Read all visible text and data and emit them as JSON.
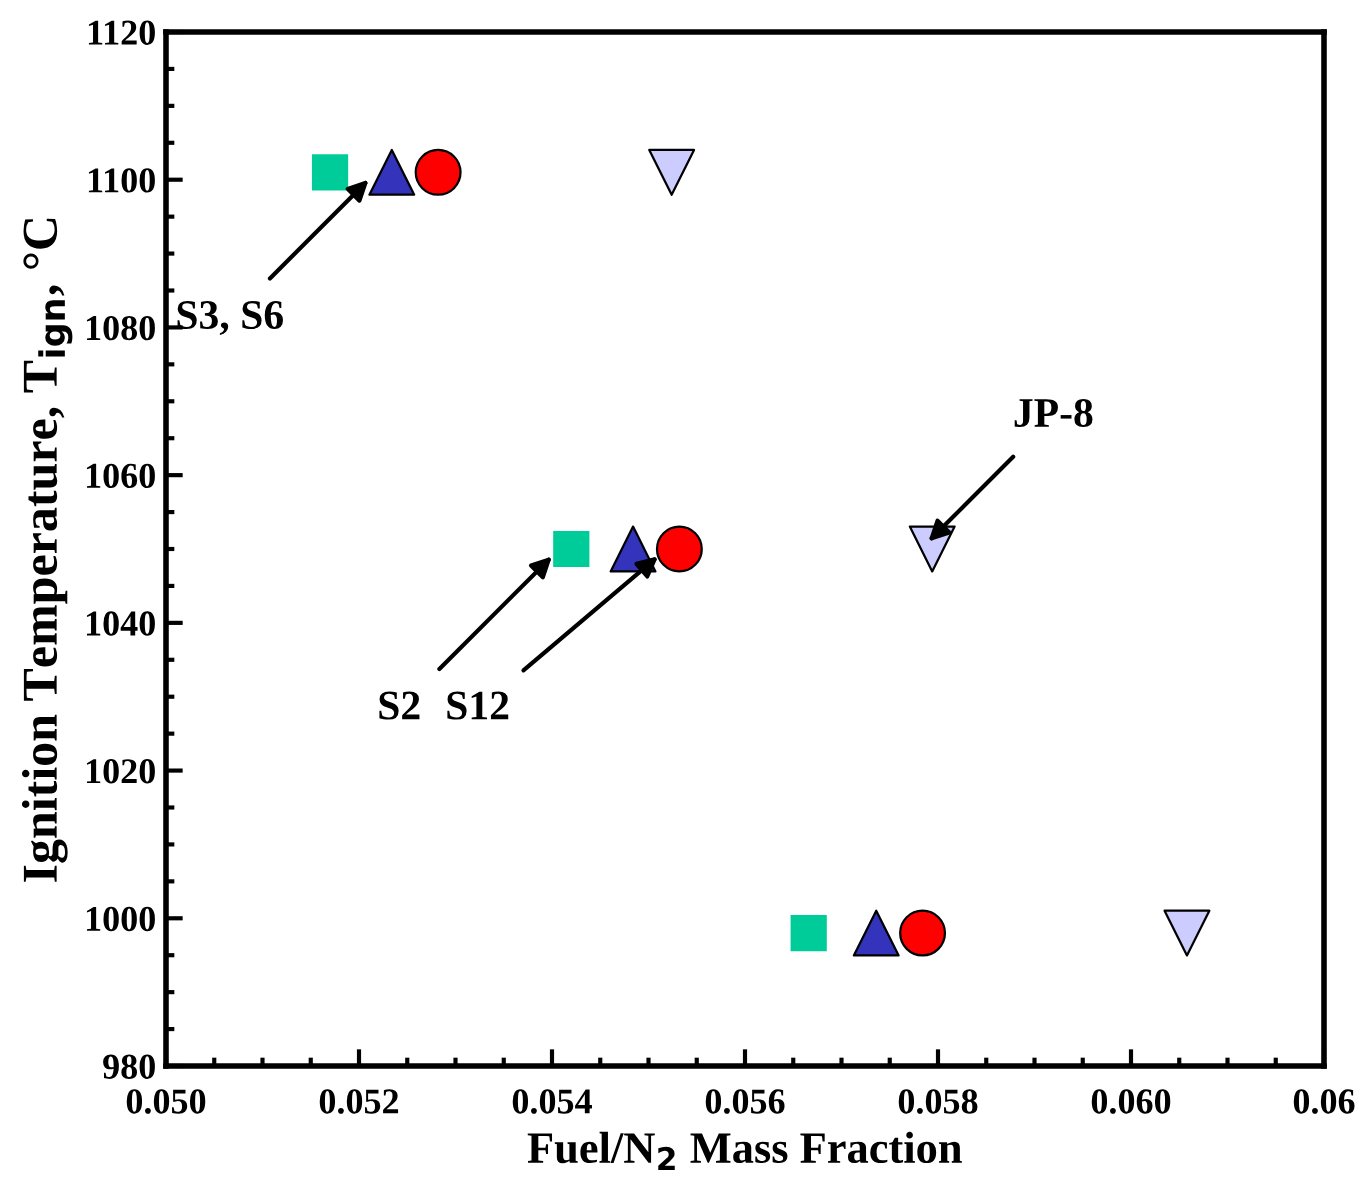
{
  "chart_data": {
    "type": "scatter",
    "xlabel": "Fuel/N$_{2}$ Mass Fraction",
    "ylabel": "Ignition Temperature, T$_{ign}$, °C",
    "xlim": [
      0.05,
      0.062
    ],
    "xticks": [
      {
        "value": 0.05,
        "label": "0.050"
      },
      {
        "value": 0.052,
        "label": "0.052"
      },
      {
        "value": 0.054,
        "label": "0.054"
      },
      {
        "value": 0.056,
        "label": "0.056"
      },
      {
        "value": 0.058,
        "label": "0.058"
      },
      {
        "value": 0.06,
        "label": "0.060"
      },
      {
        "value": 0.062,
        "label": "0.06"
      }
    ],
    "ylim": [
      980,
      1120
    ],
    "yticks": [
      980,
      1000,
      1020,
      1040,
      1060,
      1080,
      1100,
      1120
    ],
    "grid": false,
    "series": [
      {
        "color": "#00cc99",
        "marker": "square",
        "x": [
          0.0517,
          0.0542,
          0.05666
        ],
        "values": [
          1101,
          1050,
          998
        ]
      },
      {
        "color": "#3333bb",
        "marker": "triangle",
        "x": [
          0.05234,
          0.05484,
          0.05736
        ],
        "values": [
          1101,
          1050,
          998
        ]
      },
      {
        "color": "#ff0000",
        "marker": "circle",
        "x": [
          0.05282,
          0.05532,
          0.05784
        ],
        "values": [
          1101,
          1050,
          998
        ]
      },
      {
        "color": "#ccccff",
        "marker": "triangle_down",
        "x": [
          0.05524,
          0.05794,
          0.06058
        ],
        "values": [
          1101,
          1050,
          998
        ]
      }
    ],
    "annotations": [
      {
        "text": "S3, S6",
        "x": 0.0521,
        "y": 1100
      },
      {
        "text": "S2",
        "x": 0.054,
        "y": 1049
      },
      {
        "text": "S12",
        "x": 0.0551,
        "y": 1049
      },
      {
        "text": "JP-8",
        "x": 0.0579,
        "y": 1051
      }
    ]
  }
}
